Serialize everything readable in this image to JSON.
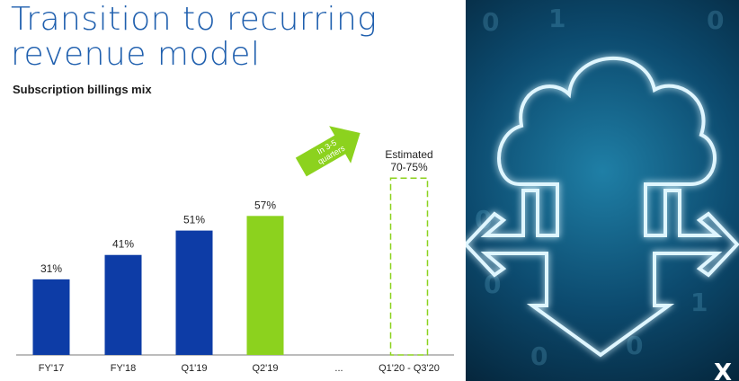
{
  "slide": {
    "title_line1": "Transition to recurring",
    "title_line2": "revenue model",
    "subtitle": "Subscription billings mix"
  },
  "chart_data": {
    "type": "bar",
    "categories": [
      "FY'17",
      "FY'18",
      "Q1'19",
      "Q2'19",
      "...",
      "Q1'20 - Q3'20"
    ],
    "values": [
      31,
      41,
      51,
      57,
      null,
      72.5
    ],
    "value_labels": [
      "31%",
      "41%",
      "51%",
      "57%",
      "",
      "Estimated\n70-75%"
    ],
    "bar_styles": [
      "solid",
      "solid",
      "solid",
      "highlight",
      "none",
      "dashed"
    ],
    "ylim": [
      0,
      100
    ],
    "grid": false,
    "colors": {
      "primary": "#0d3ca6",
      "highlight": "#8cd21e",
      "dashed": "#8cd21e",
      "axis": "#7a7a7a"
    },
    "annotation": {
      "text": "In 3-5 quarters",
      "color": "#8cd21e"
    }
  },
  "side_image": {
    "description_icons": [
      "cloud-icon",
      "arrow-left-icon",
      "arrow-right-icon",
      "arrow-down-icon"
    ],
    "logo_glyph": "X"
  }
}
